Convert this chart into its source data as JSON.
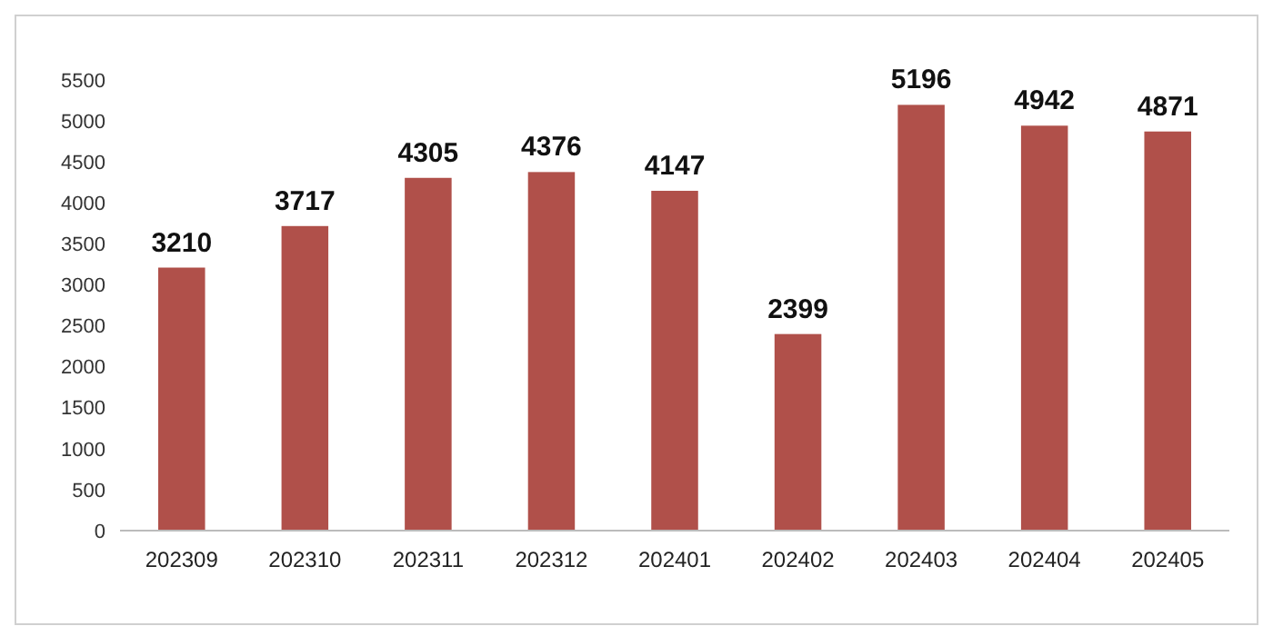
{
  "chart_data": {
    "type": "bar",
    "categories": [
      "202309",
      "202310",
      "202311",
      "202312",
      "202401",
      "202402",
      "202403",
      "202404",
      "202405"
    ],
    "values": [
      3210,
      3717,
      4305,
      4376,
      4147,
      2399,
      5196,
      4942,
      4871
    ],
    "color": "#b0504a",
    "ylim": [
      0,
      5500
    ],
    "yticks": [
      0,
      500,
      1000,
      1500,
      2000,
      2500,
      3000,
      3500,
      4000,
      4500,
      5000,
      5500
    ],
    "grid": false,
    "data_labels": true
  }
}
